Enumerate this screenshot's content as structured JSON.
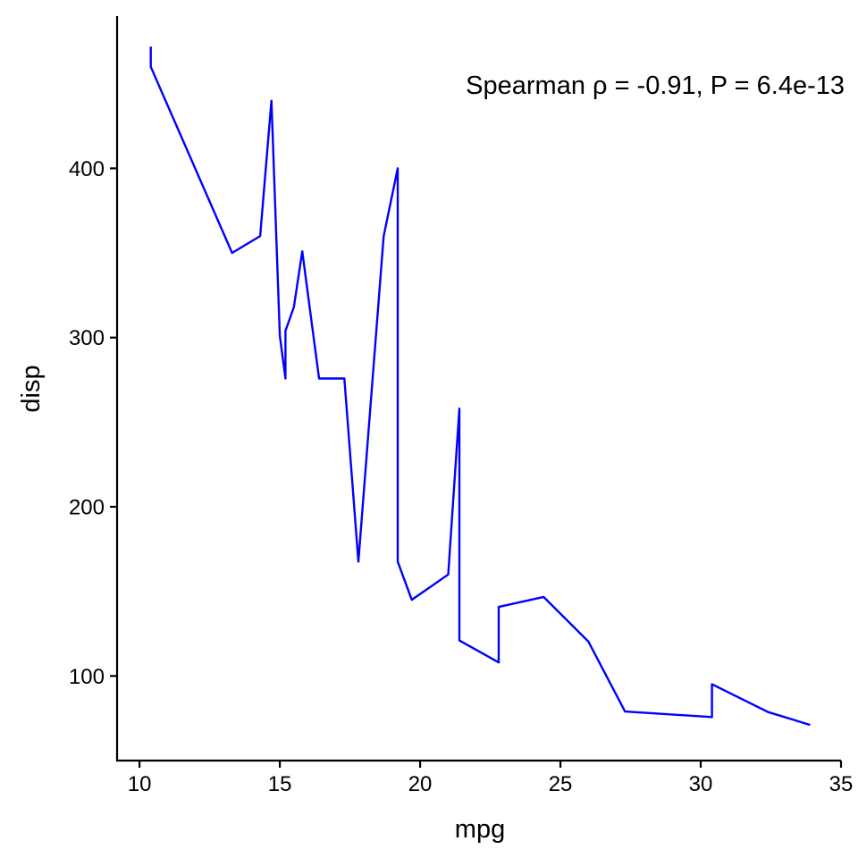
{
  "chart_data": {
    "type": "line",
    "title": "",
    "xlabel": "mpg",
    "ylabel": "disp",
    "xlim": [
      9.2,
      35.0
    ],
    "ylim": [
      50,
      490
    ],
    "x_ticks": [
      10,
      15,
      20,
      25,
      30,
      35
    ],
    "y_ticks": [
      100,
      200,
      300,
      400
    ],
    "x_tick_labels": [
      "10",
      "15",
      "20",
      "25",
      "30",
      "35"
    ],
    "y_tick_labels": [
      "100",
      "200",
      "300",
      "400"
    ],
    "grid": false,
    "annotation": "Spearman ρ = -0.91, P = 6.4e-13",
    "series": [
      {
        "color": "#0000ff",
        "x": [
          10.4,
          10.4,
          13.3,
          14.3,
          14.7,
          15.0,
          15.2,
          15.2,
          15.5,
          15.8,
          16.4,
          17.3,
          17.8,
          18.7,
          19.2,
          19.2,
          19.7,
          21.0,
          21.4,
          21.4,
          22.8,
          22.8,
          24.4,
          26.0,
          27.3,
          30.4,
          30.4,
          32.4,
          33.9
        ],
        "y": [
          472,
          460,
          350,
          360,
          440,
          301,
          275.8,
          304,
          318,
          351,
          275.8,
          275.8,
          167.6,
          360,
          400,
          167.6,
          145,
          160,
          258,
          121,
          108,
          140.8,
          146.7,
          120.3,
          79,
          75.7,
          95.1,
          78.7,
          71.1
        ]
      }
    ]
  }
}
